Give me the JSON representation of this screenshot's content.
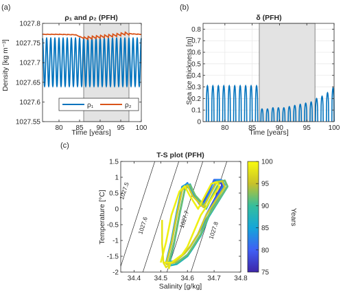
{
  "chart_data": [
    {
      "panel_label": "(a)",
      "type": "line",
      "title": "ρ₁ and ρ₂ (PFH)",
      "xlabel": "Time [years]",
      "ylabel": "Density [kg m⁻³]",
      "xlim": [
        76,
        100
      ],
      "ylim": [
        1027.55,
        1027.8
      ],
      "xticks": [
        80,
        85,
        90,
        95,
        100
      ],
      "yticks": [
        1027.55,
        1027.6,
        1027.65,
        1027.7,
        1027.75,
        1027.8
      ],
      "ytick_labels": [
        "1027.55",
        "1027.6",
        "1027.65",
        "1027.7",
        "1027.75",
        "1027.8"
      ],
      "shaded_x": [
        86,
        97
      ],
      "legend": {
        "placement": "lower-center",
        "entries": [
          "ρ₁",
          "ρ₂"
        ]
      },
      "series": [
        {
          "name": "ρ₁",
          "color": "#0072BD",
          "kind": "seasonal-oscillation",
          "x_start": 76,
          "x_end": 100,
          "min": 1027.64,
          "max": 1027.762
        },
        {
          "name": "ρ₂",
          "color": "#D95319",
          "x": [
            76,
            80,
            84,
            86,
            87,
            89,
            91,
            93,
            95,
            96,
            97,
            98,
            100
          ],
          "y": [
            1027.772,
            1027.772,
            1027.771,
            1027.762,
            1027.763,
            1027.765,
            1027.767,
            1027.769,
            1027.772,
            1027.774,
            1027.774,
            1027.773,
            1027.772
          ]
        }
      ]
    },
    {
      "panel_label": "(b)",
      "type": "bar",
      "title": "δ (PFH)",
      "xlabel": "Time [years]",
      "ylabel": "Sea ice thickness [m]",
      "xlim": [
        76,
        100
      ],
      "ylim": [
        0,
        0.85
      ],
      "xticks": [
        80,
        85,
        90,
        95,
        100
      ],
      "yticks": [
        0,
        0.1,
        0.2,
        0.3,
        0.4,
        0.5,
        0.6,
        0.7,
        0.8
      ],
      "ytick_labels": [
        "0",
        "0.1",
        "0.2",
        "0.3",
        "0.4",
        "0.5",
        "0.6",
        "0.7",
        "0.8"
      ],
      "grid": true,
      "shaded_x": [
        86.3,
        96.5
      ],
      "color": "#0072BD",
      "x": [
        76.8,
        77.8,
        78.8,
        79.8,
        80.8,
        81.8,
        82.8,
        83.8,
        84.8,
        85.8,
        86.8,
        87.8,
        88.8,
        89.8,
        90.8,
        91.8,
        92.8,
        93.8,
        94.8,
        95.8,
        96.8,
        97.8,
        98.8,
        99.8
      ],
      "values": [
        0.31,
        0.31,
        0.31,
        0.31,
        0.31,
        0.31,
        0.31,
        0.31,
        0.31,
        0.31,
        0.11,
        0.11,
        0.12,
        0.12,
        0.12,
        0.13,
        0.14,
        0.15,
        0.16,
        0.17,
        0.2,
        0.22,
        0.25,
        0.29
      ]
    },
    {
      "panel_label": "(c)",
      "type": "scatter",
      "title": "T-S plot (PFH)",
      "xlabel": "Salinity [g/kg]",
      "ylabel": "Temperature [°C]",
      "xlim": [
        34.35,
        34.8
      ],
      "ylim": [
        -2,
        1.5
      ],
      "xticks": [
        34.4,
        34.5,
        34.6,
        34.7,
        34.8
      ],
      "yticks": [
        -2,
        -1.5,
        -1,
        -0.5,
        0,
        0.5,
        1,
        1.5
      ],
      "ytick_labels": [
        "-2",
        "-1.5",
        "-1",
        "-0.5",
        "0",
        "0.5",
        "1",
        "1.5"
      ],
      "density_contours": [
        {
          "label": "1027.5",
          "s_at_t0": 34.42,
          "label_at": [
            34.37,
            0.55
          ]
        },
        {
          "label": "1027.6",
          "s_at_t0": 34.51,
          "label_at": [
            34.44,
            -0.55
          ]
        },
        {
          "label": "1027.7",
          "s_at_t0": 34.6,
          "label_at": [
            34.595,
            -0.35
          ]
        },
        {
          "label": "1027.8",
          "s_at_t0": 34.69,
          "label_at": [
            34.705,
            -0.7
          ]
        }
      ],
      "colorbar": {
        "label": "Years",
        "range": [
          75,
          100
        ],
        "ticks": [
          75,
          80,
          85,
          90,
          95,
          100
        ]
      },
      "loops": [
        {
          "year": 77,
          "s": [
            34.52,
            34.54,
            34.56,
            34.58,
            34.6,
            34.62,
            34.65,
            34.7,
            34.72,
            34.73,
            34.67,
            34.64,
            34.61,
            34.59,
            34.55,
            34.52
          ],
          "t": [
            -1.75,
            -1.1,
            -0.2,
            0.6,
            0.8,
            0.45,
            0.1,
            0.9,
            0.9,
            0.75,
            -0.2,
            -0.8,
            -1.2,
            -1.4,
            -1.7,
            -1.75
          ]
        },
        {
          "year": 81,
          "s": [
            34.52,
            34.54,
            34.56,
            34.58,
            34.6,
            34.62,
            34.66,
            34.7,
            34.725,
            34.735,
            34.67,
            34.64,
            34.61,
            34.59,
            34.55,
            34.52
          ],
          "t": [
            -1.72,
            -1.05,
            -0.15,
            0.65,
            0.82,
            0.45,
            0.12,
            0.92,
            0.92,
            0.75,
            -0.2,
            -0.8,
            -1.2,
            -1.4,
            -1.68,
            -1.72
          ]
        },
        {
          "year": 84,
          "s": [
            34.52,
            34.54,
            34.56,
            34.58,
            34.6,
            34.62,
            34.66,
            34.71,
            34.73,
            34.74,
            34.68,
            34.64,
            34.61,
            34.59,
            34.55,
            34.52
          ],
          "t": [
            -1.7,
            -1.0,
            -0.1,
            0.7,
            0.8,
            0.5,
            0.1,
            0.9,
            0.9,
            0.75,
            -0.2,
            -0.8,
            -1.2,
            -1.4,
            -1.65,
            -1.7
          ]
        },
        {
          "year": 88,
          "s": [
            34.53,
            34.55,
            34.57,
            34.59,
            34.61,
            34.63,
            34.67,
            34.72,
            34.74,
            34.75,
            34.68,
            34.65,
            34.62,
            34.6,
            34.56,
            34.53
          ],
          "t": [
            -1.8,
            -1.1,
            -0.2,
            0.6,
            0.78,
            0.4,
            0.0,
            0.85,
            0.9,
            0.7,
            -0.25,
            -0.85,
            -1.25,
            -1.5,
            -1.75,
            -1.8
          ]
        },
        {
          "year": 92,
          "s": [
            34.53,
            34.55,
            34.57,
            34.59,
            34.61,
            34.63,
            34.67,
            34.72,
            34.74,
            34.75,
            34.68,
            34.65,
            34.62,
            34.6,
            34.56,
            34.53
          ],
          "t": [
            -1.7,
            -1.05,
            -0.15,
            0.62,
            0.75,
            0.42,
            0.05,
            0.85,
            0.9,
            0.72,
            -0.2,
            -0.8,
            -1.2,
            -1.45,
            -1.7,
            -1.7
          ]
        },
        {
          "year": 96,
          "s": [
            34.52,
            34.54,
            34.56,
            34.58,
            34.6,
            34.62,
            34.66,
            34.71,
            34.73,
            34.74,
            34.67,
            34.64,
            34.61,
            34.59,
            34.55,
            34.52
          ],
          "t": [
            -1.75,
            -1.1,
            -0.2,
            0.6,
            0.75,
            0.4,
            0.05,
            0.85,
            0.88,
            0.7,
            -0.2,
            -0.8,
            -1.2,
            -1.4,
            -1.7,
            -1.75
          ]
        },
        {
          "year": 99,
          "s": [
            34.5,
            34.52,
            34.54,
            34.57,
            34.59,
            34.61,
            34.64,
            34.69,
            34.71,
            34.72,
            34.65,
            34.62,
            34.6,
            34.58,
            34.54,
            34.51
          ],
          "t": [
            -1.7,
            -1.05,
            -0.2,
            0.55,
            0.72,
            0.4,
            0.0,
            0.8,
            0.85,
            0.7,
            -0.2,
            -0.8,
            -1.2,
            -1.45,
            -1.7,
            -1.7
          ]
        }
      ],
      "drop_trace": {
        "year": 98,
        "s": [
          34.505,
          34.505,
          34.51,
          34.52,
          34.535,
          34.53
        ],
        "t": [
          -0.35,
          -1.1,
          -1.7,
          -1.85,
          -1.75,
          -1.9
        ]
      }
    }
  ]
}
